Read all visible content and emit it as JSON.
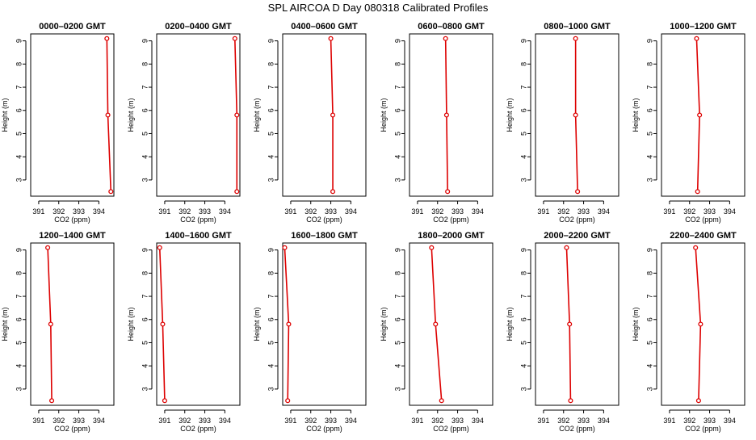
{
  "title": "SPL AIRCOA D  Day 080318  Calibrated Profiles",
  "colors": {
    "series": "#dd0000",
    "axis": "#000000"
  },
  "chart_data": {
    "type": "line",
    "xlabel": "CO2 (ppm)",
    "ylabel": "Height (m)",
    "xticks": [
      391,
      392,
      393,
      394
    ],
    "yticks": [
      3,
      4,
      5,
      6,
      7,
      8,
      9
    ],
    "xlim": [
      390.6,
      394.75
    ],
    "ylim": [
      2.3,
      9.3
    ],
    "heights": [
      9.1,
      5.8,
      2.5
    ],
    "grid": false,
    "panels": [
      {
        "title": "0000–0200 GMT",
        "co2": [
          394.4,
          394.45,
          394.6
        ]
      },
      {
        "title": "0200–0400 GMT",
        "co2": [
          394.5,
          394.6,
          394.6
        ]
      },
      {
        "title": "0400–0600 GMT",
        "co2": [
          393.0,
          393.1,
          393.1
        ]
      },
      {
        "title": "0600–0800 GMT",
        "co2": [
          392.4,
          392.45,
          392.5
        ]
      },
      {
        "title": "0800–1000 GMT",
        "co2": [
          392.6,
          392.6,
          392.7
        ]
      },
      {
        "title": "1000–1200 GMT",
        "co2": [
          392.35,
          392.5,
          392.4
        ]
      },
      {
        "title": "1200–1400 GMT",
        "co2": [
          391.45,
          391.6,
          391.65
        ]
      },
      {
        "title": "1400–1600 GMT",
        "co2": [
          390.75,
          390.9,
          391.0
        ]
      },
      {
        "title": "1600–1800 GMT",
        "co2": [
          390.7,
          390.9,
          390.85
        ]
      },
      {
        "title": "1800–2000 GMT",
        "co2": [
          391.7,
          391.9,
          392.2
        ]
      },
      {
        "title": "2000–2200 GMT",
        "co2": [
          392.15,
          392.3,
          392.35
        ]
      },
      {
        "title": "2200–2400 GMT",
        "co2": [
          392.3,
          392.55,
          392.45
        ]
      }
    ]
  }
}
